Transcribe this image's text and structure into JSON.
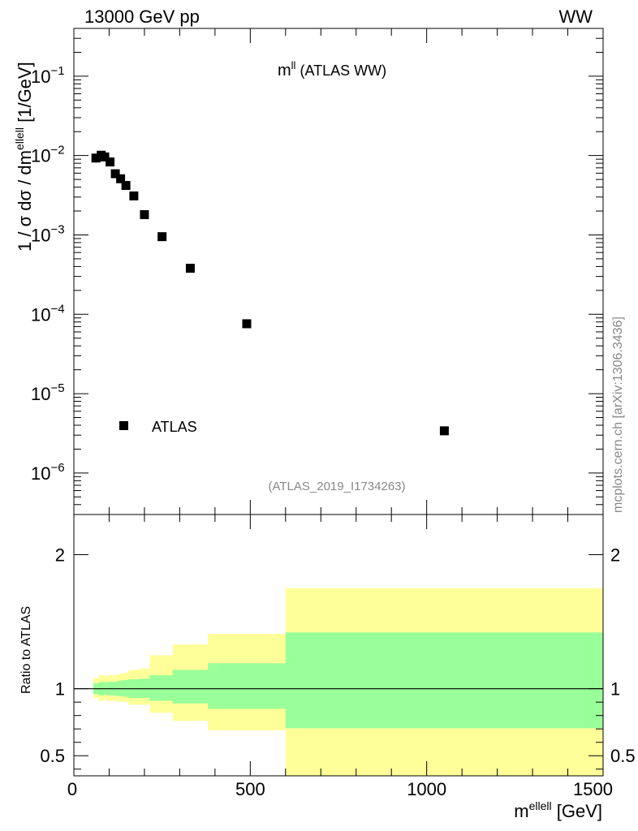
{
  "header": {
    "left": "13000 GeV pp",
    "right": "WW"
  },
  "side_label": "mcplots.cern.ch [arXiv:1306.3436]",
  "plot_title": {
    "main": "m",
    "sup": "ll",
    "rest": " (ATLAS WW)"
  },
  "analysis_id": "(ATLAS_2019_I1734263)",
  "legend": [
    {
      "label": "ATLAS",
      "marker": "square",
      "color": "#000000"
    }
  ],
  "ylabel_main": {
    "part1": "1 / σ  dσ / dm",
    "sup": "ellell",
    "part2": " [1/GeV]"
  },
  "ylabel_ratio": "Ratio to ATLAS",
  "xlabel": {
    "main": "m",
    "sup": "ellell",
    "rest": " [GeV]"
  },
  "colors": {
    "band_inner": "#99ff99",
    "band_outer": "#ffff99",
    "marker": "#000000"
  },
  "chart_data": [
    {
      "type": "scatter",
      "scale_y": "log",
      "xlim": [
        0,
        1500
      ],
      "ylim": [
        3e-07,
        0.4
      ],
      "y_ticks": [
        {
          "mant": "10",
          "exp": "−1",
          "v": 0.1
        },
        {
          "mant": "10",
          "exp": "−2",
          "v": 0.01
        },
        {
          "mant": "10",
          "exp": "−3",
          "v": 0.001
        },
        {
          "mant": "10",
          "exp": "−4",
          "v": 0.0001
        },
        {
          "mant": "10",
          "exp": "−5",
          "v": 1e-05
        },
        {
          "mant": "10",
          "exp": "−6",
          "v": 1e-06
        }
      ],
      "series": [
        {
          "name": "ATLAS",
          "x": [
            62.5,
            77.5,
            87.5,
            102.5,
            117.5,
            132.5,
            147.5,
            170,
            200,
            250,
            330,
            490,
            1050
          ],
          "y": [
            0.0093,
            0.0101,
            0.0096,
            0.0083,
            0.0059,
            0.0051,
            0.0042,
            0.0031,
            0.0018,
            0.00095,
            0.00038,
            7.6e-05,
            3.4e-06
          ]
        }
      ]
    },
    {
      "type": "area",
      "xlim": [
        0,
        1500
      ],
      "ylim": [
        0.35,
        2.3
      ],
      "y_ticks": [
        "0.5",
        "1",
        "2"
      ],
      "x_ticks": [
        "0",
        "500",
        "1000",
        "1500"
      ],
      "reference_line": 1,
      "bins": [
        55,
        70,
        85,
        90,
        115,
        120,
        125,
        140,
        155,
        185,
        215,
        280,
        380,
        600,
        1500
      ],
      "band_inner": {
        "low": [
          0.96,
          0.95,
          0.96,
          0.95,
          0.95,
          0.945,
          0.945,
          0.94,
          0.93,
          0.93,
          0.91,
          0.89,
          0.85,
          0.705
        ],
        "high": [
          1.04,
          1.05,
          1.045,
          1.05,
          1.05,
          1.055,
          1.06,
          1.065,
          1.07,
          1.075,
          1.1,
          1.14,
          1.19,
          1.42
        ]
      },
      "band_outer": {
        "low": [
          0.93,
          0.91,
          0.925,
          0.91,
          0.91,
          0.905,
          0.905,
          0.9,
          0.88,
          0.88,
          0.82,
          0.76,
          0.69,
          0.35
        ],
        "high": [
          1.08,
          1.1,
          1.09,
          1.1,
          1.1,
          1.105,
          1.11,
          1.12,
          1.14,
          1.15,
          1.25,
          1.33,
          1.41,
          1.75
        ]
      }
    }
  ]
}
